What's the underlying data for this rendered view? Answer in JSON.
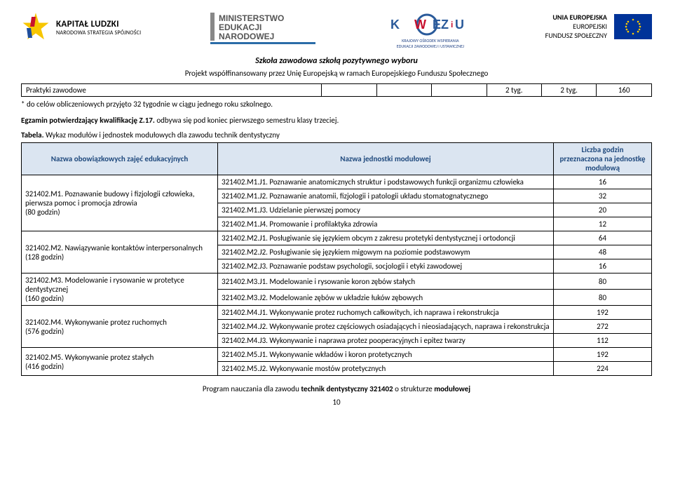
{
  "header": {
    "kapital_ludzki": {
      "title": "KAPITAŁ LUDZKI",
      "subtitle": "NARODOWA STRATEGIA SPÓJNOŚCI"
    },
    "ministerstwo_lines": [
      "MINISTERSTWO",
      "EDUKACJI",
      "NARODOWEJ"
    ],
    "koweziu": {
      "sub": "KRAJOWY OŚRODEK WSPIERANIA\nEDUKACJI ZAWODOWEJ I USTAWICZNEJ"
    },
    "eu": {
      "line1": "UNIA EUROPEJSKA",
      "line2": "EUROPEJSKI",
      "line3": "FUNDUSZ SPOŁECZNY"
    }
  },
  "slogan": "Szkoła zawodowa szkołą pozytywnego wyboru",
  "cofinance": "Projekt współfinansowany przez Unię Europejską w ramach Europejskiego Funduszu Społecznego",
  "small_table": {
    "label": "Praktyki zawodowe",
    "cells": [
      "",
      "",
      "",
      "2 tyg.",
      "2 tyg.",
      "160"
    ]
  },
  "note": "* do celów obliczeniowych przyjęto 32 tygodnie w ciągu jednego roku szkolnego.",
  "exam": {
    "bold": "Egzamin potwierdzający kwalifikację Z.17.",
    "rest": " odbywa się pod koniec pierwszego semestru klasy trzeciej."
  },
  "table_caption": {
    "bold": "Tabela.",
    "rest": " Wykaz modułów i jednostek modułowych dla zawodu technik dentystyczny"
  },
  "modules_table": {
    "header_left": "Nazwa obowiązkowych zajęć edukacyjnych",
    "header_mid": "Nazwa jednostki modułowej",
    "header_right": "Liczba godzin\nprzeznaczona na jednostkę modułową",
    "groups": [
      {
        "label": "321402.M1. Poznawanie budowy i fizjologii człowieka, pierwsza pomoc i promocja zdrowia\n(80 godzin)",
        "rows": [
          {
            "unit": "321402.M1.J1. Poznawanie anatomicznych struktur i podstawowych funkcji organizmu człowieka",
            "hours": "16"
          },
          {
            "unit": "321402.M1.J2. Poznawanie anatomii, fizjologii i patologii układu stomatognatycznego",
            "hours": "32"
          },
          {
            "unit": "321402.M1.J3. Udzielanie pierwszej pomocy",
            "hours": "20"
          },
          {
            "unit": "321402.M1.J4. Promowanie i profilaktyka zdrowia",
            "hours": "12"
          }
        ]
      },
      {
        "label": "321402.M2. Nawiązywanie kontaktów interpersonalnych\n(128 godzin)",
        "rows": [
          {
            "unit": "321402.M2.J1. Posługiwanie się językiem obcym z zakresu protetyki dentystycznej i ortodoncji",
            "hours": "64"
          },
          {
            "unit": "321402.M2.J2. Posługiwanie się językiem migowym na poziomie podstawowym",
            "hours": "48"
          },
          {
            "unit": "321402.M2.J3. Poznawanie podstaw psychologii, socjologii i etyki zawodowej",
            "hours": "16"
          }
        ]
      },
      {
        "label": "321402.M3. Modelowanie i rysowanie w protetyce dentystycznej\n(160 godzin)",
        "rows": [
          {
            "unit": "321402.M3.J1. Modelowanie i rysowanie koron zębów stałych",
            "hours": "80"
          },
          {
            "unit": "321402.M3.J2. Modelowanie zębów w układzie łuków zębowych",
            "hours": "80"
          }
        ]
      },
      {
        "label": "321402.M4. Wykonywanie protez ruchomych\n(576 godzin)",
        "rows": [
          {
            "unit": "321402.M4.J1. Wykonywanie protez ruchomych całkowitych, ich naprawa i rekonstrukcja",
            "hours": "192"
          },
          {
            "unit": "321402.M4.J2. Wykonywanie protez częściowych osiadających i nieosiadających, naprawa i rekonstrukcja",
            "hours": "272"
          },
          {
            "unit": "321402.M4.J3. Wykonywanie i naprawa protez pooperacyjnych i epitez twarzy",
            "hours": "112"
          }
        ]
      },
      {
        "label": "321402.M5. Wykonywanie protez stałych\n(416 godzin)",
        "rows": [
          {
            "unit": "321402.M5.J1. Wykonywanie wkładów i koron protetycznych",
            "hours": "192"
          },
          {
            "unit": "321402.M5.J2. Wykonywanie mostów protetycznych",
            "hours": "224"
          }
        ]
      }
    ]
  },
  "footer": {
    "pre": "Program nauczania dla zawodu ",
    "bold1": "technik dentystyczny 321402",
    "mid": " o strukturze ",
    "bold2": "modułowej"
  },
  "page_num": "10"
}
